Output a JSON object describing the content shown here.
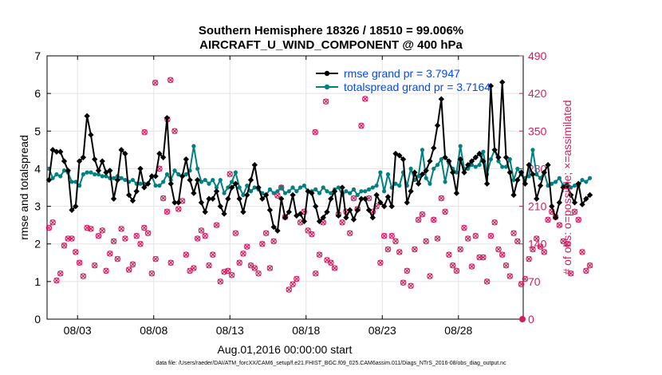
{
  "title_line1": "Southern Hemisphere 18326 / 18510 = 99.006%",
  "title_line2": "AIRCRAFT_U_WIND_COMPONENT @ 400 hPa",
  "footer": "data file: /Users/raeder/DAI/ATM_forcXX/CAM6_setup/f.e21.FHIST_BGC.f09_025.CAM6assim.011/Diags_NTrS_2016-08/obs_diag_output.nc",
  "chart_data": {
    "type": "line",
    "xlabel": "Aug.01,2016 00:00:00 start",
    "ylabel_left": "rmse and totalspread",
    "ylabel_right": "# of obs: o=possible; ×=assimilated",
    "x_ticks": [
      "08/03",
      "08/08",
      "08/13",
      "08/18",
      "08/23",
      "08/28"
    ],
    "x_tick_days": [
      3,
      8,
      13,
      18,
      23,
      28
    ],
    "xlim": [
      1,
      32.25
    ],
    "ylim_left": [
      0,
      7
    ],
    "ylim_right": [
      0,
      490
    ],
    "y_ticks_left": [
      "0",
      "1",
      "2",
      "3",
      "4",
      "5",
      "6",
      "7"
    ],
    "y_ticks_right": [
      "0",
      "70",
      "140",
      "210",
      "280",
      "350",
      "420",
      "490"
    ],
    "legend": [
      "rmse grand pr = 3.7947",
      "totalspread grand pr = 3.7164"
    ],
    "colors": {
      "rmse": "#000000",
      "spread": "#008080",
      "obs": "#d81b60",
      "legend_text": "#0047ff"
    },
    "step_days": 0.25,
    "start_day": 1.125,
    "series": [
      {
        "name": "rmse",
        "values": [
          3.7,
          4.5,
          4.45,
          4.45,
          4.2,
          3.95,
          2.9,
          3.0,
          4.2,
          4.3,
          5.4,
          4.9,
          4.25,
          3.95,
          4.2,
          3.9,
          3.95,
          3.2,
          3.7,
          4.5,
          4.4,
          3.3,
          3.15,
          3.4,
          4.0,
          3.5,
          3.6,
          3.8,
          3.8,
          4.4,
          4.3,
          5.35,
          3.6,
          3.1,
          3.1,
          3.8,
          4.25,
          3.7,
          3.35,
          3.7,
          3.1,
          2.85,
          3.2,
          3.2,
          3.4,
          3.0,
          2.8,
          3.2,
          3.5,
          3.6,
          3.2,
          2.85,
          3.3,
          3.7,
          4.1,
          3.5,
          3.2,
          3.3,
          2.9,
          2.45,
          2.35,
          3.2,
          2.7,
          2.85,
          3.3,
          2.75,
          2.8,
          2.6,
          3.4,
          3.35,
          3.0,
          2.6,
          2.7,
          2.85,
          3.2,
          3.4,
          2.75,
          3.5,
          2.7,
          2.9,
          2.65,
          2.9,
          3.2,
          3.2,
          2.9,
          2.7,
          3.3,
          3.1,
          3.0,
          3.25,
          3.0,
          4.4,
          4.35,
          4.25,
          3.1,
          3.4,
          3.9,
          3.6,
          3.85,
          3.95,
          4.2,
          4.55,
          5.15,
          5.85,
          4.3,
          4.2,
          3.9,
          3.35,
          4.25,
          3.9,
          4.1,
          4.2,
          4.3,
          4.4,
          4.2,
          3.6,
          6.2,
          4.5,
          4.3,
          6.3,
          4.3,
          3.9,
          3.3,
          3.7,
          3.9,
          3.6,
          4.1,
          3.85,
          3.2,
          3.55,
          3.9,
          4.1,
          3.0,
          2.7,
          3.1,
          3.5,
          3.55,
          3.3,
          3.1,
          3.6,
          3.05,
          3.2,
          3.3
        ]
      },
      {
        "name": "totalspread",
        "values": [
          4.0,
          3.75,
          3.85,
          3.8,
          3.95,
          3.9,
          3.65,
          3.65,
          3.55,
          3.85,
          3.9,
          3.9,
          3.85,
          3.85,
          3.8,
          3.8,
          3.75,
          3.75,
          3.8,
          3.75,
          3.7,
          3.65,
          3.7,
          3.6,
          3.6,
          3.6,
          3.6,
          3.8,
          3.55,
          3.55,
          3.65,
          3.85,
          3.7,
          3.95,
          3.85,
          3.8,
          3.85,
          3.95,
          4.6,
          4.0,
          3.65,
          3.7,
          3.6,
          3.7,
          3.5,
          3.7,
          3.35,
          3.5,
          3.65,
          3.9,
          3.5,
          3.3,
          3.55,
          3.4,
          3.5,
          3.45,
          3.35,
          3.3,
          3.45,
          3.35,
          3.4,
          3.5,
          3.35,
          3.4,
          3.5,
          3.4,
          3.5,
          3.55,
          3.4,
          3.4,
          3.45,
          3.35,
          3.5,
          3.4,
          3.35,
          3.45,
          3.5,
          3.3,
          3.4,
          3.35,
          3.45,
          3.3,
          3.4,
          3.4,
          3.45,
          3.5,
          3.55,
          3.9,
          3.4,
          3.85,
          3.5,
          3.6,
          3.55,
          3.9,
          3.55,
          4.0,
          3.7,
          3.8,
          4.5,
          3.75,
          3.6,
          4.0,
          4.1,
          4.25,
          3.65,
          4.15,
          4.0,
          3.9,
          4.6,
          4.0,
          4.0,
          4.1,
          4.05,
          4.1,
          4.45,
          3.85,
          4.25,
          4.5,
          4.2,
          4.05,
          4.05,
          4.25,
          3.7,
          4.0,
          3.85,
          3.75,
          3.8,
          4.5,
          3.85,
          3.75,
          3.9,
          3.55,
          3.6,
          3.65,
          3.75,
          3.55,
          3.6,
          3.5,
          3.55,
          3.55,
          3.7,
          3.65,
          3.75
        ]
      },
      {
        "name": "obs_count",
        "values": [
          170,
          180,
          72,
          85,
          137,
          150,
          150,
          125,
          105,
          80,
          170,
          168,
          100,
          155,
          165,
          90,
          122,
          145,
          112,
          168,
          150,
          92,
          102,
          155,
          140,
          170,
          160,
          85,
          112,
          280,
          225,
          200,
          105,
          350,
          205,
          220,
          120,
          90,
          95,
          150,
          165,
          155,
          100,
          120,
          175,
          70,
          88,
          90,
          82,
          160,
          105,
          122,
          135,
          100,
          95,
          85,
          140,
          160,
          95,
          145,
          230,
          245,
          190,
          55,
          65,
          75,
          180,
          200,
          165,
          158,
          85,
          120,
          180,
          110,
          105,
          95,
          195,
          180,
          200,
          160,
          225,
          205,
          360,
          410,
          225,
          200,
          210,
          105,
          155,
          130,
          155,
          145,
          125,
          68,
          90,
          62,
          130,
          185,
          195,
          145,
          80,
          185,
          150,
          225,
          200,
          120,
          100,
          90,
          130,
          170,
          150,
          98,
          155,
          115,
          115,
          70,
          155,
          180,
          130,
          120,
          100,
          80,
          160,
          145,
          65,
          75,
          112,
          130,
          150,
          135,
          125,
          185,
          200,
          190,
          175,
          145,
          140,
          85,
          200,
          185,
          125,
          90,
          100
        ]
      },
      {
        "name": "obs_high",
        "day_values": [
          [
            8.1,
            440
          ],
          [
            9.1,
            445
          ],
          [
            7.4,
            348
          ],
          [
            8.9,
            372
          ],
          [
            19.3,
            405
          ],
          [
            18.6,
            348
          ],
          [
            13.0,
            270
          ]
        ]
      }
    ]
  }
}
